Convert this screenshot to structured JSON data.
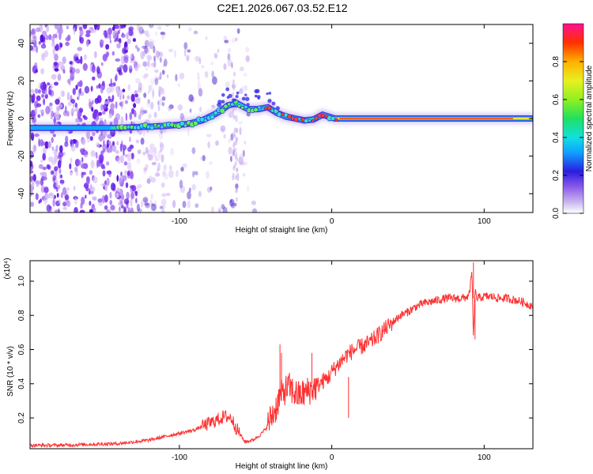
{
  "title": "C2E1.2026.067.03.52.E12",
  "chart_data": [
    {
      "type": "heatmap",
      "name": "spectrogram",
      "xlabel": "Height of straight line (km)",
      "ylabel": "Frequency (Hz)",
      "xlim": [
        -198,
        132
      ],
      "ylim": [
        -50,
        50
      ],
      "xticks": [
        -100,
        0,
        100
      ],
      "xtick_labels": [
        "-100",
        "0",
        "100"
      ],
      "yticks": [
        -40,
        -20,
        0,
        20,
        40
      ],
      "ytick_labels": [
        "-40",
        "-20",
        "0",
        "20",
        "40"
      ],
      "colorbar": {
        "label": "Normalized spectral amplitude",
        "range": [
          0,
          1
        ],
        "ticks": [
          0,
          0.2,
          0.4,
          0.6,
          0.8
        ],
        "tick_labels": [
          "0.0",
          "0.2",
          "0.4",
          "0.6",
          "0.8"
        ]
      },
      "ridge": {
        "x": [
          -198,
          -160,
          -140,
          -125,
          -110,
          -95,
          -85,
          -75,
          -68,
          -62,
          -55,
          -48,
          -42,
          -36,
          -30,
          -24,
          -18,
          -12,
          -6,
          -2,
          2,
          10,
          40,
          80,
          110,
          132
        ],
        "y": [
          -5,
          -5,
          -5,
          -4.5,
          -4,
          -3,
          -1,
          3,
          7,
          8,
          5,
          5,
          6,
          3,
          1,
          0,
          -1,
          -0.5,
          2,
          1,
          0,
          0,
          0,
          0,
          0,
          0
        ]
      }
    },
    {
      "type": "line",
      "name": "snr",
      "xlabel": "Height of straight line (km)",
      "ylabel": "SNR (10 * v/v)",
      "multiplier": "(x10⁴)",
      "xlim": [
        -198,
        132
      ],
      "ylim": [
        0.02,
        1.12
      ],
      "xticks": [
        -100,
        0,
        100
      ],
      "xtick_labels": [
        "-100",
        "0",
        "100"
      ],
      "yticks": [
        0.2,
        0.4,
        0.6,
        0.8,
        1.0
      ],
      "ytick_labels": [
        "0.2",
        "0.4",
        "0.6",
        "0.8",
        "1.0"
      ],
      "color": "#ff3030",
      "series": [
        {
          "name": "SNR",
          "x": [
            -198,
            -180,
            -160,
            -140,
            -130,
            -120,
            -110,
            -100,
            -90,
            -80,
            -75,
            -70,
            -66,
            -62,
            -57,
            -52,
            -47,
            -43,
            -40,
            -37,
            -34,
            -31,
            -28,
            -25,
            -22,
            -19,
            -15,
            -11,
            -8,
            -5,
            -2,
            0,
            5,
            10,
            15,
            20,
            25,
            30,
            35,
            40,
            45,
            50,
            55,
            60,
            65,
            70,
            75,
            80,
            85,
            90,
            92,
            93,
            94,
            95,
            100,
            105,
            110,
            115,
            120,
            125,
            130,
            132
          ],
          "y": [
            0.04,
            0.04,
            0.045,
            0.05,
            0.06,
            0.07,
            0.09,
            0.11,
            0.13,
            0.17,
            0.19,
            0.21,
            0.2,
            0.13,
            0.06,
            0.07,
            0.1,
            0.14,
            0.2,
            0.25,
            0.33,
            0.36,
            0.38,
            0.35,
            0.33,
            0.34,
            0.36,
            0.38,
            0.4,
            0.42,
            0.44,
            0.47,
            0.52,
            0.57,
            0.6,
            0.62,
            0.64,
            0.68,
            0.72,
            0.76,
            0.8,
            0.82,
            0.85,
            0.87,
            0.88,
            0.89,
            0.9,
            0.9,
            0.9,
            0.91,
            1.05,
            0.66,
            0.95,
            0.9,
            0.91,
            0.91,
            0.9,
            0.9,
            0.89,
            0.88,
            0.86,
            0.86
          ]
        }
      ]
    }
  ]
}
